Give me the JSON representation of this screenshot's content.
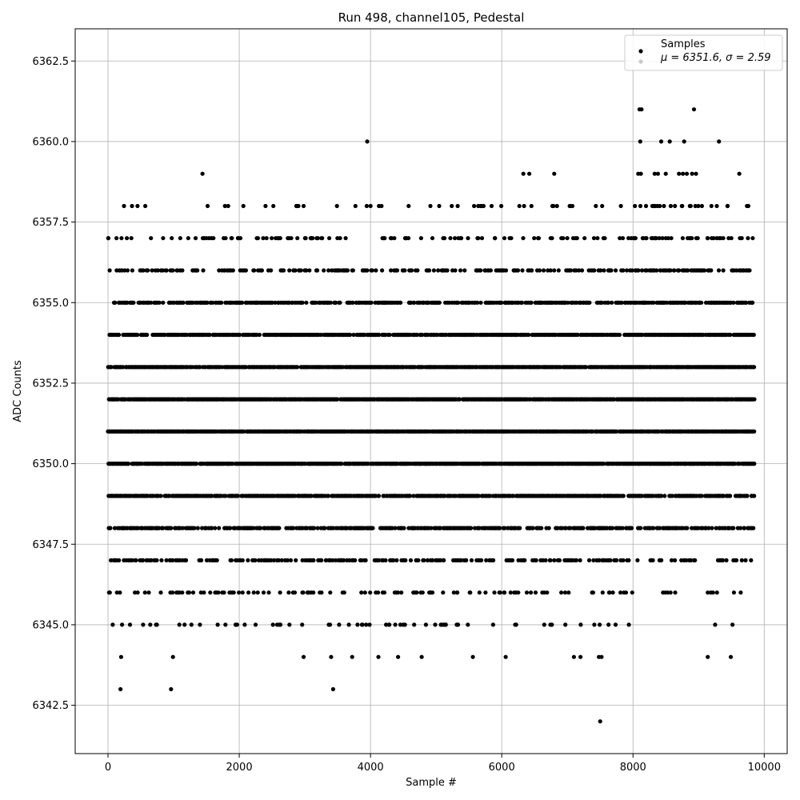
{
  "chart_data": {
    "type": "scatter",
    "title": "Run 498, channel105, Pedestal",
    "xlabel": "Sample #",
    "ylabel": "ADC Counts",
    "xlim": [
      -500,
      10350
    ],
    "ylim": [
      6341.0,
      6363.5
    ],
    "xticks": [
      0,
      2000,
      4000,
      6000,
      8000,
      10000
    ],
    "yticks": [
      6342.5,
      6345.0,
      6347.5,
      6350.0,
      6352.5,
      6355.0,
      6357.5,
      6360.0,
      6362.5
    ],
    "xtick_labels": [
      "0",
      "2000",
      "4000",
      "6000",
      "8000",
      "10000"
    ],
    "ytick_labels": [
      "6342.5",
      "6345.0",
      "6347.5",
      "6350.0",
      "6352.5",
      "6355.0",
      "6357.5",
      "6360.0",
      "6362.5"
    ],
    "grid": true,
    "legend": {
      "position": "top-right",
      "entries": [
        "Samples",
        "μ = 6351.6, σ = 2.59"
      ]
    },
    "colors": {
      "points": "#000000",
      "grid": "#b0b0b0",
      "legend_second_marker": "#c8c8c8"
    },
    "n_samples": 9856,
    "series": [
      {
        "name": "Samples",
        "x_range": [
          0,
          9855
        ],
        "y_levels": [
          6342,
          6343,
          6344,
          6345,
          6346,
          6347,
          6348,
          6349,
          6350,
          6351,
          6352,
          6353,
          6354,
          6355,
          6356,
          6357,
          6358,
          6359,
          6360,
          6361
        ],
        "outlier_points": [
          [
            190,
            6343
          ],
          [
            960,
            6343
          ],
          [
            3430,
            6343
          ],
          [
            7500,
            6342
          ],
          [
            1440,
            6359
          ],
          [
            3950,
            6360
          ],
          [
            6330,
            6359
          ],
          [
            6420,
            6359
          ],
          [
            6800,
            6359
          ],
          [
            8100,
            6361
          ],
          [
            8130,
            6361
          ],
          [
            8930,
            6361
          ],
          [
            8110,
            6360
          ],
          [
            8430,
            6360
          ],
          [
            8560,
            6360
          ],
          [
            8780,
            6360
          ],
          [
            9310,
            6360
          ],
          [
            8080,
            6359
          ],
          [
            8120,
            6359
          ],
          [
            8330,
            6359
          ],
          [
            8380,
            6359
          ],
          [
            8500,
            6359
          ],
          [
            8700,
            6359
          ],
          [
            8760,
            6359
          ],
          [
            8820,
            6359
          ],
          [
            8900,
            6359
          ],
          [
            8960,
            6359
          ],
          [
            9620,
            6359
          ],
          [
            200,
            6344
          ],
          [
            990,
            6344
          ],
          [
            2980,
            6344
          ],
          [
            3400,
            6344
          ],
          [
            3720,
            6344
          ],
          [
            4120,
            6344
          ],
          [
            4420,
            6344
          ],
          [
            4780,
            6344
          ],
          [
            5560,
            6344
          ],
          [
            6060,
            6344
          ],
          [
            7100,
            6344
          ],
          [
            7200,
            6344
          ],
          [
            7480,
            6344
          ],
          [
            7520,
            6344
          ],
          [
            9140,
            6344
          ],
          [
            9490,
            6344
          ]
        ]
      }
    ]
  }
}
